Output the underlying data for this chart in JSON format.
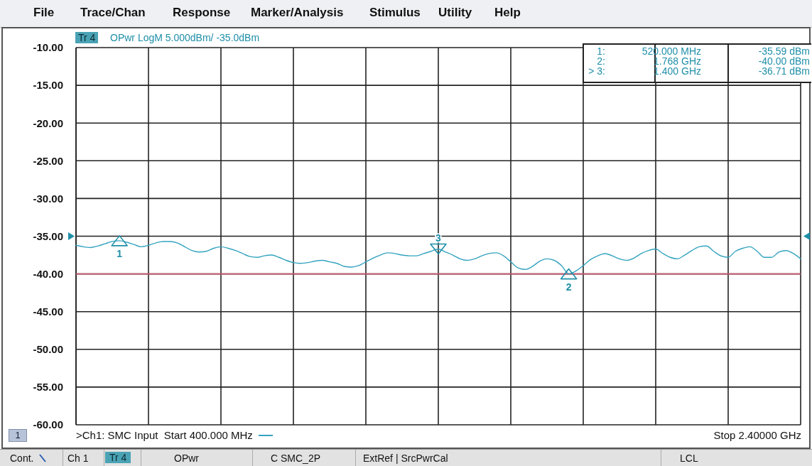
{
  "chart_data": {
    "type": "line",
    "title": "OPwr LogM 5.000dBm/ -35.0dBm",
    "categories": [
      null,
      null,
      null,
      null,
      null,
      null,
      null,
      null,
      null,
      null,
      null,
      null,
      null,
      null,
      null,
      null,
      null,
      null,
      null,
      null,
      null,
      null,
      null,
      null,
      null,
      null,
      null,
      null,
      null,
      null,
      null,
      null,
      null,
      null,
      null,
      null,
      null,
      null,
      null,
      null,
      null,
      null,
      null,
      null,
      null,
      null,
      null,
      null,
      null,
      null,
      null,
      null,
      null,
      null,
      null,
      null,
      null,
      null,
      null,
      null,
      null,
      null,
      null,
      null,
      null,
      null,
      null,
      null,
      null,
      null,
      null,
      null,
      null,
      null,
      null,
      null,
      null,
      null,
      null,
      null,
      null,
      null,
      null,
      null,
      null,
      null,
      null,
      null,
      null,
      null,
      null,
      null,
      null,
      null,
      null,
      null,
      null,
      null,
      null,
      null,
      null
    ],
    "series": [
      {
        "color": "#33a3bf",
        "values": [
          -36.2,
          -36.4,
          -36.5,
          -36.3,
          -36.0,
          -35.7,
          -35.6,
          -35.8,
          -36.1,
          -36.4,
          -36.2,
          -35.9,
          -35.7,
          -35.7,
          -35.9,
          -36.4,
          -36.9,
          -37.1,
          -37.0,
          -36.6,
          -36.4,
          -36.6,
          -36.9,
          -37.3,
          -37.7,
          -37.8,
          -37.6,
          -37.5,
          -37.8,
          -38.2,
          -38.5,
          -38.6,
          -38.5,
          -38.3,
          -38.2,
          -38.4,
          -38.6,
          -39.0,
          -39.1,
          -38.9,
          -38.4,
          -37.9,
          -37.5,
          -37.2,
          -37.3,
          -37.5,
          -37.6,
          -37.6,
          -37.3,
          -37.0,
          -36.7,
          -37.1,
          -37.5,
          -38.0,
          -38.2,
          -38.0,
          -37.6,
          -37.3,
          -37.2,
          -37.6,
          -38.4,
          -39.2,
          -39.4,
          -39.0,
          -38.3,
          -38.0,
          -38.2,
          -38.9,
          -40.0,
          -39.6,
          -38.9,
          -38.1,
          -37.6,
          -37.3,
          -37.6,
          -38.0,
          -38.2,
          -37.9,
          -37.3,
          -36.9,
          -36.7,
          -37.3,
          -37.8,
          -38.0,
          -37.5,
          -36.9,
          -36.4,
          -36.3,
          -37.0,
          -37.6,
          -37.8,
          -37.0,
          -36.6,
          -36.4,
          -37.0,
          -37.8,
          -37.8,
          -37.1,
          -36.9,
          -37.3,
          -38.0
        ]
      },
      {
        "type": "scatter",
        "color": "#1f8fa8",
        "marker": "triangle",
        "values": [
          null,
          null,
          null,
          null,
          null,
          null,
          -35.6,
          null,
          null,
          null,
          null,
          null,
          null,
          null,
          null,
          null,
          null,
          null,
          null,
          null,
          null,
          null,
          null,
          null,
          null,
          null,
          null,
          null,
          null,
          null,
          null,
          null,
          null,
          null,
          null,
          null,
          null,
          null,
          null,
          null,
          null,
          null,
          null,
          null,
          null,
          null,
          null,
          null,
          null,
          null,
          -36.7,
          null,
          null,
          null,
          null,
          null,
          null,
          null,
          null,
          null,
          null,
          null,
          null,
          null,
          null,
          null,
          null,
          null,
          -40.0,
          null,
          null,
          null,
          null,
          null,
          null,
          null,
          null,
          null,
          null,
          null,
          null,
          null,
          null,
          null,
          null,
          null,
          null,
          null,
          null,
          null,
          null,
          null,
          null,
          null,
          null,
          null,
          null,
          null,
          null,
          null,
          null
        ]
      }
    ],
    "ylim": [
      -60,
      -10
    ],
    "yticks": [
      {
        "value": -10,
        "label": "-10.00"
      },
      {
        "value": -15,
        "label": "-15.00"
      },
      {
        "value": -20,
        "label": "-20.00"
      },
      {
        "value": -25,
        "label": "-25.00"
      },
      {
        "value": -30,
        "label": "-30.00"
      },
      {
        "value": -35,
        "label": "-35.00"
      },
      {
        "value": -40,
        "label": "-40.00"
      },
      {
        "value": -45,
        "label": "-45.00"
      },
      {
        "value": -50,
        "label": "-50.00"
      },
      {
        "value": -55,
        "label": "-55.00"
      },
      {
        "value": -60,
        "label": "-60.00"
      }
    ],
    "grid": true,
    "marker": "none",
    "line_style": "solid",
    "ref_lines": [
      {
        "axis": "y",
        "value": -40,
        "color": "#d9607a"
      }
    ],
    "annotations": [
      "File",
      "Trace/Chan",
      "Response",
      "Marker/Analysis",
      "Stimulus",
      "Utility",
      "Help",
      "Tr 4",
      "1:",
      "520.000 MHz",
      "-35.59 dBm",
      "2:",
      "1.768 GHz",
      "-40.00 dBm",
      "> 3:",
      "1.400 GHz",
      "-36.71 dBm",
      {
        "text": "1",
        "y": -35.6
      },
      {
        "text": "2",
        "y": -40.0
      },
      {
        "text": "3",
        "y": -36.7
      },
      "1",
      ">Ch1: SMC Input  Start 400.000 MHz",
      "Stop 2.40000 GHz",
      "Cont.",
      "Ch 1",
      "Tr 4",
      "OPwr",
      "C SMC_2P",
      "ExtRef | SrcPwrCal",
      "LCL"
    ]
  }
}
